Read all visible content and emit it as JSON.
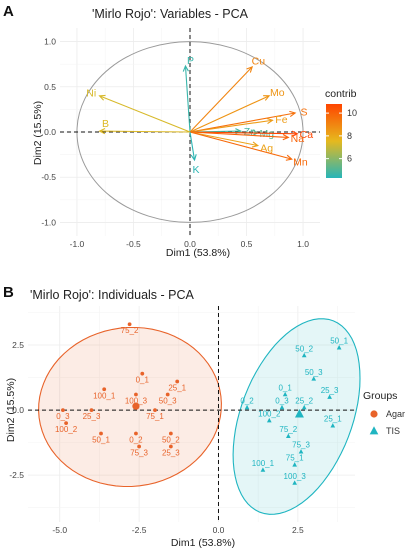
{
  "chart_data": [
    {
      "panel": "A",
      "type": "scatter",
      "title": "'Mirlo Rojo': Variables - PCA",
      "xlabel": "Dim1 (53.8%)",
      "ylabel": "Dim2 (15.5%)",
      "xlim": [
        -1.15,
        1.15
      ],
      "ylim": [
        -1.15,
        1.15
      ],
      "xticks": [
        -1.0,
        -0.5,
        0.0,
        0.5,
        1.0
      ],
      "yticks": [
        -1.0,
        -0.5,
        0.0,
        0.5,
        1.0
      ],
      "xtick_labels": [
        "-1.0",
        "-0.5",
        "0.0",
        "0.5",
        "1.0"
      ],
      "ytick_labels": [
        "-1.0",
        "-0.5",
        "0.0",
        "0.5",
        "1.0"
      ],
      "grid": true,
      "legend": {
        "title": "contrib",
        "ticks": [
          6,
          8,
          10
        ],
        "range": [
          4.3,
          10.8
        ],
        "colors": [
          "#26B5B8",
          "#E6B91E",
          "#FF4500"
        ],
        "placement": "right"
      },
      "vectors": [
        {
          "label": "P",
          "x": -0.04,
          "y": 0.73,
          "contrib": 4.6
        },
        {
          "label": "Cu",
          "x": 0.55,
          "y": 0.72,
          "contrib": 9.0
        },
        {
          "label": "Ni",
          "x": -0.8,
          "y": 0.4,
          "contrib": 7.3
        },
        {
          "label": "Mo",
          "x": 0.7,
          "y": 0.4,
          "contrib": 8.6
        },
        {
          "label": "S",
          "x": 0.93,
          "y": 0.21,
          "contrib": 9.6
        },
        {
          "label": "Fe",
          "x": 0.73,
          "y": 0.13,
          "contrib": 8.4
        },
        {
          "label": "B",
          "x": -0.8,
          "y": 0.01,
          "contrib": 7.4
        },
        {
          "label": "Zn",
          "x": 0.45,
          "y": 0.01,
          "contrib": 4.8
        },
        {
          "label": "Mg",
          "x": 0.6,
          "y": -0.01,
          "contrib": 5.2
        },
        {
          "label": "Ca",
          "x": 0.95,
          "y": -0.02,
          "contrib": 10.8
        },
        {
          "label": "Na",
          "x": 0.87,
          "y": -0.06,
          "contrib": 10.0
        },
        {
          "label": "Ag",
          "x": 0.6,
          "y": -0.15,
          "contrib": 8.2
        },
        {
          "label": "Mn",
          "x": 0.9,
          "y": -0.3,
          "contrib": 9.8
        },
        {
          "label": "K",
          "x": 0.04,
          "y": -0.31,
          "contrib": 4.4
        }
      ]
    },
    {
      "panel": "B",
      "type": "scatter",
      "title": "'Mirlo Rojo': Individuals - PCA",
      "xlabel": "Dim1 (53.8%)",
      "ylabel": "Dim2 (15.5%)",
      "xlim": [
        -6.0,
        4.3
      ],
      "ylim": [
        -4.3,
        4.0
      ],
      "xticks": [
        -5.0,
        -2.5,
        0.0,
        2.5
      ],
      "yticks": [
        -2.5,
        0.0,
        2.5
      ],
      "xtick_labels": [
        "-5.0",
        "-2.5",
        "0.0",
        "2.5"
      ],
      "ytick_labels": [
        "-2.5",
        "0.0",
        "2.5"
      ],
      "grid": true,
      "legend": {
        "title": "Groups",
        "placement": "right"
      },
      "series": [
        {
          "name": "Agar",
          "color": "#E8632A",
          "marker": "circle",
          "centroid": {
            "x": -2.6,
            "y": 0.15
          },
          "points": [
            {
              "label": "75_2",
              "x": -2.8,
              "y": 3.3
            },
            {
              "label": "0_1",
              "x": -2.4,
              "y": 1.4
            },
            {
              "label": "25_1",
              "x": -1.3,
              "y": 1.1
            },
            {
              "label": "100_1",
              "x": -3.6,
              "y": 0.8
            },
            {
              "label": "100_3",
              "x": -2.6,
              "y": 0.6
            },
            {
              "label": "50_3",
              "x": -1.6,
              "y": 0.6
            },
            {
              "label": "0_3",
              "x": -4.9,
              "y": 0.0
            },
            {
              "label": "25_3",
              "x": -4.0,
              "y": 0.0
            },
            {
              "label": "75_1",
              "x": -2.0,
              "y": 0.0
            },
            {
              "label": "100_2",
              "x": -4.8,
              "y": -0.5
            },
            {
              "label": "50_1",
              "x": -3.7,
              "y": -0.9
            },
            {
              "label": "0_2",
              "x": -2.6,
              "y": -0.9
            },
            {
              "label": "50_2",
              "x": -1.5,
              "y": -0.9
            },
            {
              "label": "75_3",
              "x": -2.5,
              "y": -1.4
            },
            {
              "label": "25_3",
              "x": -1.5,
              "y": -1.4
            }
          ]
        },
        {
          "name": "TIS",
          "color": "#1FB5C1",
          "marker": "triangle",
          "centroid": {
            "x": 2.55,
            "y": -0.15
          },
          "points": [
            {
              "label": "50_1",
              "x": 3.8,
              "y": 2.4
            },
            {
              "label": "50_2",
              "x": 2.7,
              "y": 2.1
            },
            {
              "label": "50_3",
              "x": 3.0,
              "y": 1.2
            },
            {
              "label": "0_1",
              "x": 2.1,
              "y": 0.6
            },
            {
              "label": "25_3",
              "x": 3.5,
              "y": 0.5
            },
            {
              "label": "0_2",
              "x": 0.9,
              "y": 0.1
            },
            {
              "label": "0_3",
              "x": 2.0,
              "y": 0.1
            },
            {
              "label": "25_2",
              "x": 2.7,
              "y": 0.1
            },
            {
              "label": "100_2",
              "x": 1.6,
              "y": -0.4
            },
            {
              "label": "25_1",
              "x": 3.6,
              "y": -0.6
            },
            {
              "label": "75_2",
              "x": 2.2,
              "y": -1.0
            },
            {
              "label": "75_3",
              "x": 2.6,
              "y": -1.6
            },
            {
              "label": "75_1",
              "x": 2.4,
              "y": -2.1
            },
            {
              "label": "100_1",
              "x": 1.4,
              "y": -2.3
            },
            {
              "label": "100_3",
              "x": 2.4,
              "y": -2.8
            }
          ]
        }
      ]
    }
  ]
}
